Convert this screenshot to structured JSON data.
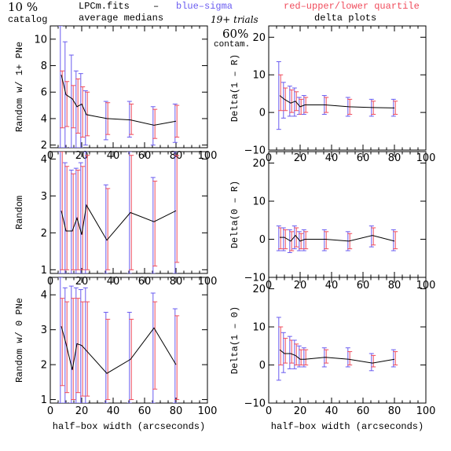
{
  "header": {
    "percent": "10 %",
    "catalog": "catalog",
    "file": "LPCm.fits",
    "dash": "–",
    "blue_label": "blue–sigma",
    "red_label": "red–upper/lower quartile",
    "avg_label": "average medians",
    "trials": "19+ trials",
    "contam_pct": "60%",
    "contam": "contam.",
    "delta_title": "delta plots"
  },
  "colors": {
    "blue": "#6a5cf0",
    "red": "#f04c5c",
    "line": "#000000",
    "axes": "#000000"
  },
  "chart_data": [
    {
      "type": "line",
      "panel": "left-top",
      "ylabel": "Random w/ 1+ PNe",
      "xlim": [
        0,
        100
      ],
      "ylim": [
        1.8,
        11
      ],
      "xticks": [
        0,
        20,
        40,
        60,
        80,
        100
      ],
      "xticklabels": [
        "0",
        "20",
        "40",
        "60",
        "80",
        "100"
      ],
      "yticks": [
        2,
        4,
        6,
        8,
        10
      ],
      "yticklabels": [
        "2",
        "4",
        "6",
        "8",
        "10"
      ],
      "x": [
        7,
        10,
        14,
        17,
        20,
        23,
        36,
        51,
        66,
        80
      ],
      "y": [
        7.3,
        5.8,
        5.5,
        4.9,
        5.1,
        4.3,
        4.0,
        3.9,
        3.5,
        3.8
      ],
      "sigma_low": [
        1.8,
        1.8,
        1.8,
        1.8,
        1.8,
        2.0,
        2.4,
        2.6,
        2.0,
        2.2
      ],
      "sigma_high": [
        11,
        9.8,
        8.8,
        7.6,
        7.4,
        6.1,
        5.3,
        5.3,
        4.9,
        5.1
      ],
      "quart_low": [
        3.3,
        3.4,
        3.3,
        2.9,
        2.6,
        2.7,
        2.8,
        2.8,
        2.5,
        2.6
      ],
      "quart_high": [
        7.6,
        6.8,
        6.5,
        7.0,
        6.4,
        6.0,
        5.2,
        5.1,
        4.7,
        5.0
      ]
    },
    {
      "type": "line",
      "panel": "right-top",
      "ylabel": "Delta(1 – R)",
      "xlim": [
        0,
        100
      ],
      "ylim": [
        -10,
        23
      ],
      "xticks": [
        0,
        20,
        40,
        60,
        80,
        100
      ],
      "xticklabels": [
        "0",
        "20",
        "40",
        "60",
        "80",
        "100"
      ],
      "yticks": [
        -10,
        0,
        10,
        20
      ],
      "yticklabels": [
        "−10",
        "0",
        "10",
        "20"
      ],
      "x": [
        7,
        10,
        14,
        17,
        20,
        23,
        36,
        51,
        66,
        80
      ],
      "y": [
        4.5,
        3.5,
        2.5,
        3.0,
        1.5,
        2.0,
        2.0,
        1.5,
        1.3,
        1.2
      ],
      "sigma_low": [
        -4.5,
        -1.5,
        -1.0,
        -1.0,
        -0.5,
        -0.5,
        -0.5,
        -1.0,
        -1.0,
        -1.0
      ],
      "sigma_high": [
        13.5,
        8.0,
        7.0,
        6.5,
        4.0,
        4.5,
        4.5,
        4.0,
        3.5,
        3.5
      ],
      "quart_low": [
        0.5,
        0.5,
        0.0,
        0.5,
        -0.5,
        0.0,
        0.0,
        -0.5,
        -0.5,
        -0.5
      ],
      "quart_high": [
        10.0,
        6.5,
        6.0,
        5.5,
        3.5,
        4.0,
        4.0,
        3.5,
        3.0,
        3.0
      ]
    },
    {
      "type": "line",
      "panel": "left-middle",
      "ylabel": "Random",
      "xlim": [
        0,
        100
      ],
      "ylim": [
        0.9,
        4.2
      ],
      "xticks": [
        0,
        20,
        40,
        60,
        80,
        100
      ],
      "xticklabels": [
        "0",
        "20",
        "40",
        "60",
        "80",
        "100"
      ],
      "yticks": [
        1,
        2,
        3,
        4
      ],
      "yticklabels": [
        "1",
        "2",
        "3",
        "4"
      ],
      "x": [
        7,
        10,
        14,
        17,
        20,
        23,
        36,
        51,
        66,
        80
      ],
      "y": [
        2.6,
        2.05,
        2.05,
        2.4,
        1.95,
        2.75,
        1.8,
        2.55,
        2.3,
        2.6
      ],
      "sigma_low": [
        0.9,
        0.9,
        0.9,
        0.9,
        0.9,
        0.9,
        0.9,
        0.9,
        0.9,
        0.9
      ],
      "sigma_high": [
        4.2,
        3.9,
        3.7,
        3.75,
        3.9,
        4.2,
        3.3,
        4.2,
        3.5,
        4.2
      ],
      "quart_low": [
        1.0,
        1.0,
        1.0,
        1.0,
        1.0,
        1.0,
        1.0,
        1.0,
        1.1,
        1.2
      ],
      "quart_high": [
        4.2,
        3.8,
        3.6,
        3.7,
        3.8,
        4.1,
        3.2,
        4.1,
        3.4,
        4.1
      ]
    },
    {
      "type": "line",
      "panel": "right-middle",
      "ylabel": "Delta(0 – R)",
      "xlim": [
        0,
        100
      ],
      "ylim": [
        -10,
        23
      ],
      "xticks": [
        0,
        20,
        40,
        60,
        80,
        100
      ],
      "xticklabels": [
        "0",
        "20",
        "40",
        "60",
        "80",
        "100"
      ],
      "yticks": [
        -10,
        0,
        10,
        20
      ],
      "yticklabels": [
        "−10",
        "0",
        "10",
        "20"
      ],
      "x": [
        7,
        10,
        14,
        17,
        20,
        23,
        36,
        51,
        66,
        80
      ],
      "y": [
        0.5,
        0.5,
        -0.5,
        1.0,
        -0.5,
        0.0,
        0.0,
        -0.5,
        1.0,
        -0.5
      ],
      "sigma_low": [
        -3.0,
        -3.0,
        -3.5,
        -2.5,
        -3.0,
        -3.0,
        -3.0,
        -3.0,
        -2.0,
        -3.0
      ],
      "sigma_high": [
        3.5,
        3.0,
        2.5,
        3.5,
        2.0,
        2.5,
        2.5,
        2.0,
        3.5,
        2.5
      ],
      "quart_low": [
        -2.5,
        -2.5,
        -3.0,
        -2.0,
        -2.5,
        -2.5,
        -2.5,
        -2.5,
        -1.5,
        -2.5
      ],
      "quart_high": [
        3.0,
        2.5,
        2.0,
        3.0,
        1.5,
        2.0,
        2.0,
        1.5,
        3.0,
        2.0
      ]
    },
    {
      "type": "line",
      "panel": "left-bottom",
      "ylabel": "Random w/ 0 PNe",
      "xlabel": "half–box width (arcseconds)",
      "xlim": [
        0,
        100
      ],
      "ylim": [
        0.9,
        4.5
      ],
      "xticks": [
        0,
        20,
        40,
        60,
        80,
        100
      ],
      "xticklabels": [
        "0",
        "20",
        "40",
        "60",
        "80",
        "100"
      ],
      "yticks": [
        1,
        2,
        3,
        4
      ],
      "yticklabels": [
        "1",
        "2",
        "3",
        "4"
      ],
      "x": [
        7,
        10,
        14,
        17,
        20,
        23,
        36,
        51,
        66,
        80
      ],
      "y": [
        3.1,
        2.6,
        1.85,
        2.6,
        2.55,
        2.4,
        1.75,
        2.15,
        3.05,
        2.0
      ],
      "sigma_low": [
        0.9,
        0.9,
        0.9,
        0.9,
        0.9,
        0.9,
        0.9,
        0.9,
        0.9,
        0.9
      ],
      "sigma_high": [
        4.5,
        4.2,
        4.25,
        4.2,
        4.15,
        4.2,
        3.5,
        3.5,
        4.05,
        3.6
      ],
      "quart_low": [
        1.4,
        1.2,
        1.0,
        1.2,
        1.1,
        1.1,
        1.0,
        1.0,
        1.3,
        1.0
      ],
      "quart_high": [
        3.9,
        3.8,
        3.9,
        3.9,
        3.8,
        3.8,
        3.3,
        3.3,
        3.8,
        3.4
      ]
    },
    {
      "type": "line",
      "panel": "right-bottom",
      "ylabel": "Delta(1 – 0)",
      "xlabel": "half–box width (arcseconds)",
      "xlim": [
        0,
        100
      ],
      "ylim": [
        -10,
        23
      ],
      "xticks": [
        0,
        20,
        40,
        60,
        80,
        100
      ],
      "xticklabels": [
        "0",
        "20",
        "40",
        "60",
        "80",
        "100"
      ],
      "yticks": [
        -10,
        0,
        10,
        20
      ],
      "yticklabels": [
        "−10",
        "0",
        "10",
        "20"
      ],
      "x": [
        7,
        10,
        14,
        17,
        20,
        23,
        36,
        51,
        66,
        80
      ],
      "y": [
        4.0,
        3.0,
        3.0,
        2.5,
        1.5,
        1.5,
        2.0,
        1.5,
        0.5,
        1.5
      ],
      "sigma_low": [
        -4.0,
        -2.0,
        -1.0,
        -1.0,
        -0.5,
        -0.5,
        -0.5,
        -0.5,
        -1.5,
        -0.5
      ],
      "sigma_high": [
        12.5,
        8.5,
        7.5,
        6.5,
        5.0,
        4.5,
        4.5,
        4.5,
        3.0,
        4.0
      ],
      "quart_low": [
        0.0,
        0.5,
        0.5,
        0.0,
        0.0,
        0.0,
        0.5,
        0.0,
        -0.5,
        0.0
      ],
      "quart_high": [
        10.0,
        7.0,
        6.5,
        5.5,
        4.0,
        4.0,
        4.0,
        3.5,
        2.5,
        3.5
      ]
    }
  ]
}
